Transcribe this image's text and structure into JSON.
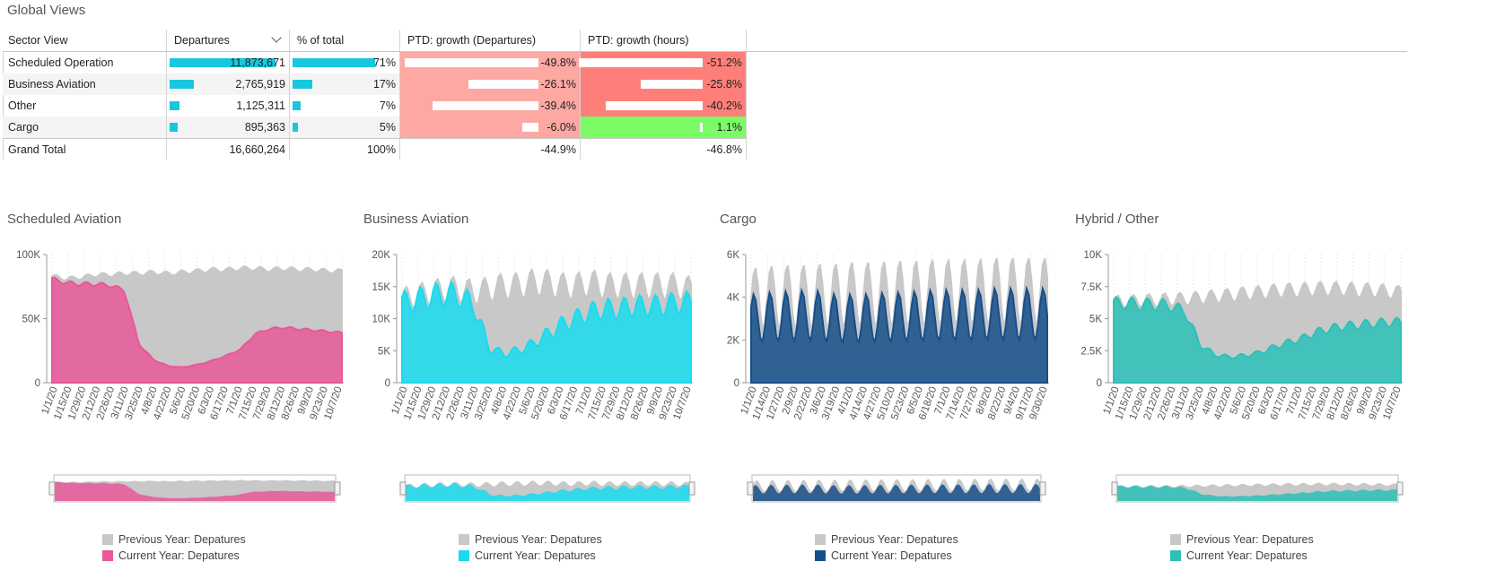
{
  "page_title": "Global Views",
  "table": {
    "headers": [
      "Sector View",
      "Departures",
      "% of total",
      "PTD: growth (Departures)",
      "PTD: growth (hours)"
    ],
    "rows": [
      {
        "sector": "Scheduled Operation",
        "departures": "11,873,671",
        "departures_value": 11873671,
        "pct": "71%",
        "pct_value": 71,
        "growth_dep": "-49.8%",
        "growth_dep_value": -49.8,
        "growth_hrs": "-51.2%",
        "growth_hrs_value": -51.2
      },
      {
        "sector": "Business Aviation",
        "departures": "2,765,919",
        "departures_value": 2765919,
        "pct": "17%",
        "pct_value": 17,
        "growth_dep": "-26.1%",
        "growth_dep_value": -26.1,
        "growth_hrs": "-25.8%",
        "growth_hrs_value": -25.8
      },
      {
        "sector": "Other",
        "departures": "1,125,311",
        "departures_value": 1125311,
        "pct": "7%",
        "pct_value": 7,
        "growth_dep": "-39.4%",
        "growth_dep_value": -39.4,
        "growth_hrs": "-40.2%",
        "growth_hrs_value": -40.2
      },
      {
        "sector": "Cargo",
        "departures": "895,363",
        "departures_value": 895363,
        "pct": "5%",
        "pct_value": 5,
        "growth_dep": "-6.0%",
        "growth_dep_value": -6.0,
        "growth_hrs": "1.1%",
        "growth_hrs_value": 1.1
      }
    ],
    "total": {
      "label": "Grand Total",
      "departures": "16,660,264",
      "pct": "100%",
      "growth_dep": "-44.9%",
      "growth_hrs": "-46.8%"
    },
    "colors": {
      "bar": "#18c7dd",
      "neg_light": "#fda8a3",
      "neg_strong": "#fe7f7a",
      "pos": "#7dfb66"
    }
  },
  "legend": {
    "previous": "Previous Year: Depatures",
    "current": "Current Year: Depatures"
  },
  "chart_data": [
    {
      "type": "area",
      "title": "Scheduled Aviation",
      "x": [
        "1/1/20",
        "1/15/20",
        "1/29/20",
        "2/12/20",
        "2/26/20",
        "3/11/20",
        "3/25/20",
        "4/8/20",
        "4/22/20",
        "5/6/20",
        "5/20/20",
        "6/3/20",
        "6/17/20",
        "7/1/20",
        "7/15/20",
        "7/29/20",
        "8/12/20",
        "8/26/20",
        "9/9/20",
        "9/23/20",
        "10/7/20"
      ],
      "yticks": [
        "0",
        "50K",
        "100K"
      ],
      "ylim": [
        0,
        100000
      ],
      "series": [
        {
          "name": "Previous Year: Depatures",
          "color": "#c8c8c8",
          "values": [
            83000,
            81000,
            82000,
            84000,
            84000,
            85000,
            85000,
            86000,
            85000,
            86000,
            87000,
            88000,
            88000,
            89000,
            89000,
            88000,
            89000,
            88000,
            88000,
            87000,
            87000
          ]
        },
        {
          "name": "Current Year: Depatures",
          "color": "#e8589a",
          "values": [
            81000,
            78000,
            77000,
            77000,
            76000,
            72000,
            30000,
            18000,
            13000,
            12000,
            14000,
            17000,
            21000,
            26000,
            38000,
            42000,
            43000,
            42000,
            41000,
            40000,
            39000
          ]
        }
      ],
      "wave_amp": 0.02
    },
    {
      "type": "area",
      "title": "Business Aviation",
      "x": [
        "1/1/20",
        "1/15/20",
        "1/29/20",
        "2/12/20",
        "2/26/20",
        "3/11/20",
        "3/25/20",
        "4/8/20",
        "4/22/20",
        "5/6/20",
        "5/20/20",
        "6/3/20",
        "6/17/20",
        "7/1/20",
        "7/15/20",
        "7/29/20",
        "8/12/20",
        "8/26/20",
        "9/9/20",
        "9/23/20",
        "10/7/20"
      ],
      "yticks": [
        "0",
        "5K",
        "10K",
        "15K",
        "20K"
      ],
      "ylim": [
        0,
        20000
      ],
      "series": [
        {
          "name": "Previous Year: Depatures",
          "color": "#c8c8c8",
          "values": [
            13000,
            13500,
            14000,
            14500,
            14500,
            14000,
            14500,
            15000,
            15000,
            15500,
            15500,
            15000,
            15000,
            15500,
            15000,
            15000,
            15000,
            15000,
            15000,
            15000,
            14500
          ]
        },
        {
          "name": "Current Year: Depatures",
          "color": "#19dbef",
          "values": [
            12500,
            13000,
            13500,
            14000,
            13500,
            12000,
            5500,
            4500,
            5000,
            6000,
            7500,
            9000,
            10000,
            11000,
            11500,
            11500,
            12000,
            12000,
            12000,
            12500,
            12500
          ]
        }
      ],
      "wave_amp": 0.14
    },
    {
      "type": "area",
      "title": "Cargo",
      "x": [
        "1/1/20",
        "1/14/20",
        "1/27/20",
        "2/9/20",
        "2/22/20",
        "3/6/20",
        "3/19/20",
        "4/1/20",
        "4/14/20",
        "4/27/20",
        "5/10/20",
        "5/23/20",
        "6/5/20",
        "6/18/20",
        "7/1/20",
        "7/14/20",
        "7/27/20",
        "8/9/20",
        "8/22/20",
        "9/4/20",
        "9/17/20",
        "9/30/20"
      ],
      "yticks": [
        "0",
        "2K",
        "4K",
        "6K"
      ],
      "ylim": [
        0,
        6000
      ],
      "series": [
        {
          "name": "Previous Year: Depatures",
          "color": "#c8c8c8",
          "values": [
            3900,
            3950,
            4000,
            4000,
            4000,
            4050,
            4050,
            4100,
            4100,
            4100,
            4150,
            4150,
            4150,
            4200,
            4200,
            4200,
            4200,
            4250,
            4250,
            4250,
            4250,
            4250
          ]
        },
        {
          "name": "Current Year: Depatures",
          "color": "#164f8a",
          "values": [
            3000,
            3050,
            3100,
            3100,
            3150,
            3100,
            3000,
            3000,
            3000,
            3050,
            3050,
            3100,
            3100,
            3150,
            3150,
            3150,
            3150,
            3200,
            3200,
            3200,
            3200,
            3200
          ]
        }
      ],
      "wave_amp": 0.38
    },
    {
      "type": "area",
      "title": "Hybrid / Other",
      "x": [
        "1/1/20",
        "1/15/20",
        "1/29/20",
        "2/12/20",
        "2/26/20",
        "3/11/20",
        "3/25/20",
        "4/8/20",
        "4/22/20",
        "5/6/20",
        "5/20/20",
        "6/3/20",
        "6/17/20",
        "7/1/20",
        "7/15/20",
        "7/29/20",
        "8/12/20",
        "8/26/20",
        "9/9/20",
        "9/23/20",
        "10/7/20"
      ],
      "yticks": [
        "0",
        "2.5K",
        "5K",
        "7.5K",
        "10K"
      ],
      "ylim": [
        0,
        10000
      ],
      "series": [
        {
          "name": "Previous Year: Depatures",
          "color": "#c8c8c8",
          "values": [
            6300,
            6300,
            6400,
            6400,
            6500,
            6500,
            6600,
            6700,
            6800,
            6900,
            7000,
            7100,
            7200,
            7200,
            7300,
            7300,
            7300,
            7200,
            7200,
            7100,
            7000
          ]
        },
        {
          "name": "Current Year: Depatures",
          "color": "#2cc1b9",
          "values": [
            6200,
            6200,
            6100,
            6100,
            6000,
            5500,
            3000,
            2200,
            2000,
            2100,
            2300,
            2700,
            3100,
            3400,
            3900,
            4200,
            4400,
            4500,
            4600,
            4700,
            4700
          ]
        }
      ],
      "wave_amp": 0.08
    }
  ]
}
